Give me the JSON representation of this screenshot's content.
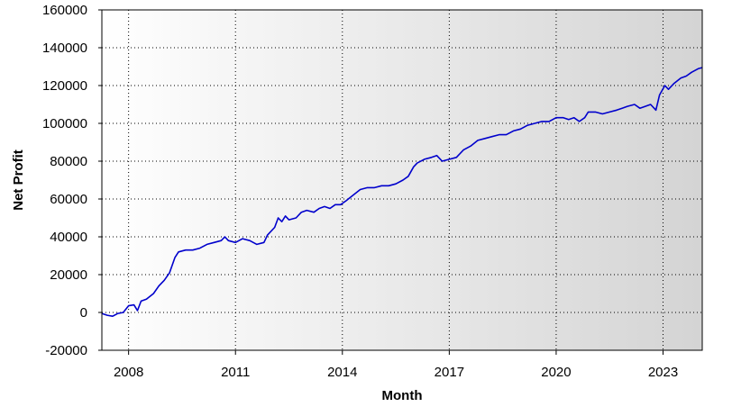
{
  "chart_data": {
    "type": "line",
    "title": "",
    "xlabel": "Month",
    "ylabel": "Net Profit",
    "xlim": [
      2007.25,
      2024.1
    ],
    "ylim": [
      -20000,
      160000
    ],
    "grid": true,
    "legend": "none",
    "colors": {
      "line": "#0000cc",
      "grid": "#000000",
      "plot_bg_start": "#ffffff",
      "plot_bg_end": "#d4d4d4"
    },
    "x_ticks": [
      {
        "value": 2008,
        "label": "2008"
      },
      {
        "value": 2011,
        "label": "2011"
      },
      {
        "value": 2014,
        "label": "2014"
      },
      {
        "value": 2017,
        "label": "2017"
      },
      {
        "value": 2020,
        "label": "2020"
      },
      {
        "value": 2023,
        "label": "2023"
      }
    ],
    "y_ticks": [
      {
        "value": -20000,
        "label": "-20000"
      },
      {
        "value": 0,
        "label": "0"
      },
      {
        "value": 20000,
        "label": "20000"
      },
      {
        "value": 40000,
        "label": "40000"
      },
      {
        "value": 60000,
        "label": "60000"
      },
      {
        "value": 80000,
        "label": "80000"
      },
      {
        "value": 100000,
        "label": "100000"
      },
      {
        "value": 120000,
        "label": "120000"
      },
      {
        "value": 140000,
        "label": "140000"
      },
      {
        "value": 160000,
        "label": "160000"
      }
    ],
    "series": [
      {
        "points": [
          [
            2007.25,
            -500
          ],
          [
            2007.4,
            -1500
          ],
          [
            2007.55,
            -2000
          ],
          [
            2007.7,
            -500
          ],
          [
            2007.85,
            0
          ],
          [
            2008.0,
            3500
          ],
          [
            2008.15,
            4000
          ],
          [
            2008.25,
            1000
          ],
          [
            2008.35,
            6000
          ],
          [
            2008.5,
            7000
          ],
          [
            2008.7,
            10000
          ],
          [
            2008.85,
            14000
          ],
          [
            2009.0,
            17000
          ],
          [
            2009.15,
            21000
          ],
          [
            2009.3,
            29000
          ],
          [
            2009.4,
            32000
          ],
          [
            2009.6,
            33000
          ],
          [
            2009.8,
            33000
          ],
          [
            2010.0,
            34000
          ],
          [
            2010.2,
            36000
          ],
          [
            2010.4,
            37000
          ],
          [
            2010.6,
            38000
          ],
          [
            2010.7,
            40000
          ],
          [
            2010.8,
            38000
          ],
          [
            2011.0,
            37000
          ],
          [
            2011.2,
            39000
          ],
          [
            2011.4,
            38000
          ],
          [
            2011.6,
            36000
          ],
          [
            2011.8,
            37000
          ],
          [
            2011.9,
            41000
          ],
          [
            2012.1,
            45000
          ],
          [
            2012.2,
            50000
          ],
          [
            2012.3,
            48000
          ],
          [
            2012.4,
            51000
          ],
          [
            2012.5,
            49000
          ],
          [
            2012.7,
            50000
          ],
          [
            2012.85,
            53000
          ],
          [
            2013.0,
            54000
          ],
          [
            2013.2,
            53000
          ],
          [
            2013.35,
            55000
          ],
          [
            2013.5,
            56000
          ],
          [
            2013.65,
            55000
          ],
          [
            2013.8,
            57000
          ],
          [
            2013.95,
            57000
          ],
          [
            2014.1,
            59000
          ],
          [
            2014.3,
            62000
          ],
          [
            2014.5,
            65000
          ],
          [
            2014.7,
            66000
          ],
          [
            2014.9,
            66000
          ],
          [
            2015.1,
            67000
          ],
          [
            2015.3,
            67000
          ],
          [
            2015.5,
            68000
          ],
          [
            2015.7,
            70000
          ],
          [
            2015.85,
            72000
          ],
          [
            2016.0,
            77000
          ],
          [
            2016.1,
            79000
          ],
          [
            2016.3,
            81000
          ],
          [
            2016.5,
            82000
          ],
          [
            2016.65,
            83000
          ],
          [
            2016.8,
            80000
          ],
          [
            2017.0,
            81000
          ],
          [
            2017.2,
            82000
          ],
          [
            2017.4,
            86000
          ],
          [
            2017.6,
            88000
          ],
          [
            2017.8,
            91000
          ],
          [
            2018.0,
            92000
          ],
          [
            2018.2,
            93000
          ],
          [
            2018.4,
            94000
          ],
          [
            2018.6,
            94000
          ],
          [
            2018.8,
            96000
          ],
          [
            2019.0,
            97000
          ],
          [
            2019.2,
            99000
          ],
          [
            2019.4,
            100000
          ],
          [
            2019.6,
            101000
          ],
          [
            2019.8,
            101000
          ],
          [
            2020.0,
            103000
          ],
          [
            2020.2,
            103000
          ],
          [
            2020.35,
            102000
          ],
          [
            2020.5,
            103000
          ],
          [
            2020.65,
            101000
          ],
          [
            2020.8,
            103000
          ],
          [
            2020.9,
            106000
          ],
          [
            2021.1,
            106000
          ],
          [
            2021.3,
            105000
          ],
          [
            2021.5,
            106000
          ],
          [
            2021.7,
            107000
          ],
          [
            2021.85,
            108000
          ],
          [
            2022.0,
            109000
          ],
          [
            2022.2,
            110000
          ],
          [
            2022.35,
            108000
          ],
          [
            2022.5,
            109000
          ],
          [
            2022.65,
            110000
          ],
          [
            2022.8,
            107000
          ],
          [
            2022.9,
            115000
          ],
          [
            2023.05,
            120000
          ],
          [
            2023.15,
            118000
          ],
          [
            2023.3,
            121000
          ],
          [
            2023.5,
            124000
          ],
          [
            2023.65,
            125000
          ],
          [
            2023.8,
            127000
          ],
          [
            2024.0,
            129000
          ],
          [
            2024.2,
            130000
          ],
          [
            2024.4,
            131000
          ],
          [
            2024.5,
            132000
          ],
          [
            2024.6,
            129000
          ],
          [
            2024.75,
            131000
          ],
          [
            2024.9,
            130000
          ],
          [
            2025.0,
            131000
          ]
        ]
      }
    ]
  }
}
